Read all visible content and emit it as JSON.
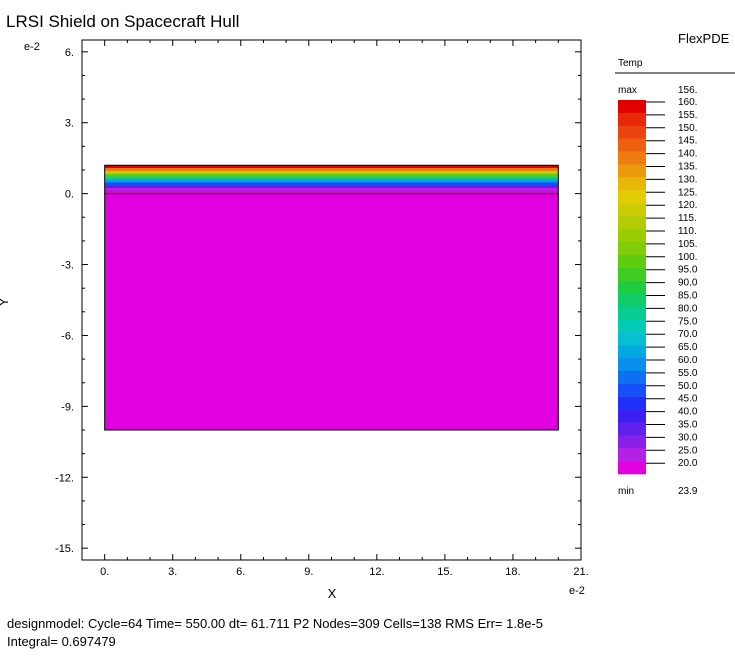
{
  "chart_data": {
    "type": "heatmap",
    "title": "LRSI Shield on Spacecraft Hull",
    "app_name": "FlexPDE",
    "xlabel": "X",
    "ylabel": "Y",
    "x_exponent": "e-2",
    "y_exponent": "e-2",
    "xlim": [
      -1,
      21
    ],
    "ylim": [
      -15.5,
      6.5
    ],
    "x_ticks": [
      0,
      3,
      6,
      9,
      12,
      15,
      18,
      21
    ],
    "x_tick_labels": [
      "0.",
      "3.",
      "6.",
      "9.",
      "12.",
      "15.",
      "18.",
      "21."
    ],
    "y_ticks": [
      6,
      3,
      0,
      -3,
      -6,
      -9,
      -12,
      -15
    ],
    "y_tick_labels": [
      "6.",
      "3.",
      "0.",
      "-3.",
      "-6.",
      "-9.",
      "-12.",
      "-15."
    ],
    "domain": {
      "x": [
        0,
        20
      ],
      "y": [
        -10,
        1.2
      ]
    },
    "shield": {
      "y_bottom": 0,
      "y_top": 1.2
    },
    "hull_value": 20.0,
    "colorbar": {
      "variable": "Temp",
      "max_label": "max",
      "min_label": "min",
      "max_value": "156.",
      "min_value": "23.9",
      "levels": [
        "160.",
        "155.",
        "150.",
        "145.",
        "140.",
        "135.",
        "130.",
        "125.",
        "120.",
        "115.",
        "110.",
        "105.",
        "100.",
        "95.0",
        "90.0",
        "85.0",
        "80.0",
        "75.0",
        "70.0",
        "65.0",
        "60.0",
        "55.0",
        "50.0",
        "45.0",
        "40.0",
        "35.0",
        "30.0",
        "25.0",
        "20.0"
      ],
      "colors": [
        "#e00000",
        "#e82808",
        "#ec4410",
        "#ee6010",
        "#ee7c10",
        "#ec9a0c",
        "#e8b808",
        "#e4cc04",
        "#cccc04",
        "#b4cc04",
        "#9ccc04",
        "#80cc08",
        "#60cc10",
        "#40cc20",
        "#20cc40",
        "#10cc68",
        "#08cc90",
        "#04ccb4",
        "#04c0d0",
        "#04a8e0",
        "#0890ec",
        "#1070f4",
        "#1850f8",
        "#2030f8",
        "#3c20f0",
        "#6020ec",
        "#8820e8",
        "#b420e4",
        "#e000e0"
      ]
    }
  },
  "status": {
    "line1": "designmodel:  Cycle=64  Time= 550.00  dt= 61.711  P2  Nodes=309 Cells=138 RMS Err= 1.8e-5",
    "line2": "Integral=  0.697479"
  }
}
